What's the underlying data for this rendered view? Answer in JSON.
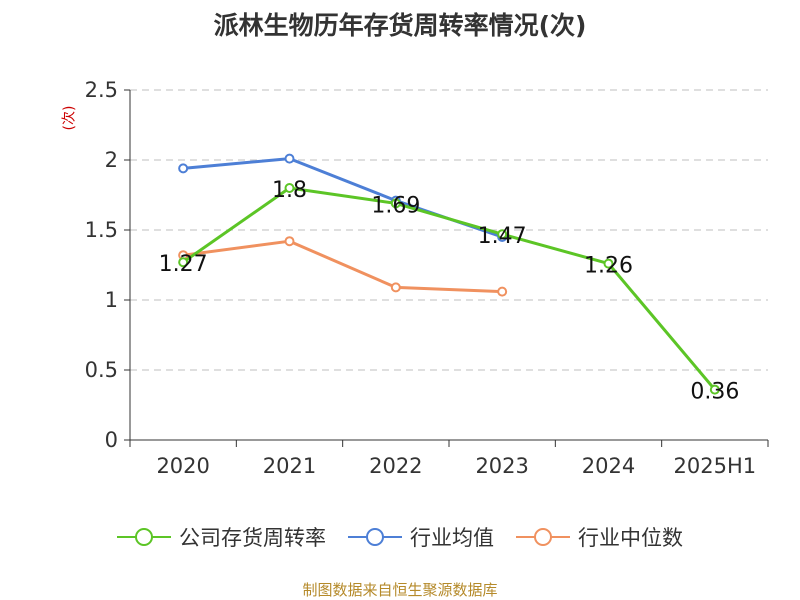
{
  "title": "派林生物历年存货周转率情况(次)",
  "source_text": "制图数据来自恒生聚源数据库",
  "colors": {
    "company": "#5cc526",
    "industry_avg": "#4d7fd6",
    "industry_median": "#f0915f",
    "axis": "#333333",
    "grid": "#cccccc",
    "unit": "#cc0000",
    "source": "#b58a2a"
  },
  "chart_data": {
    "type": "line",
    "title": "派林生物历年存货周转率情况(次)",
    "ylabel": "(次)",
    "xlabel": "",
    "categories": [
      "2020",
      "2021",
      "2022",
      "2023",
      "2024",
      "2025H1"
    ],
    "ylim": [
      0,
      2.5
    ],
    "yticks": [
      "0",
      "0.5",
      "1",
      "1.5",
      "2",
      "2.5"
    ],
    "grid": true,
    "legend_position": "bottom",
    "series": [
      {
        "name": "公司存货周转率",
        "values": [
          1.27,
          1.8,
          1.69,
          1.47,
          1.26,
          0.36
        ],
        "labels": [
          "1.27",
          "1.8",
          "1.69",
          "1.47",
          "1.26",
          "0.36"
        ],
        "color": "#5cc526"
      },
      {
        "name": "行业均值",
        "values": [
          1.94,
          2.01,
          1.71,
          1.45,
          null,
          null
        ],
        "color": "#4d7fd6"
      },
      {
        "name": "行业中位数",
        "values": [
          1.32,
          1.42,
          1.09,
          1.06,
          null,
          null
        ],
        "color": "#f0915f"
      }
    ]
  }
}
